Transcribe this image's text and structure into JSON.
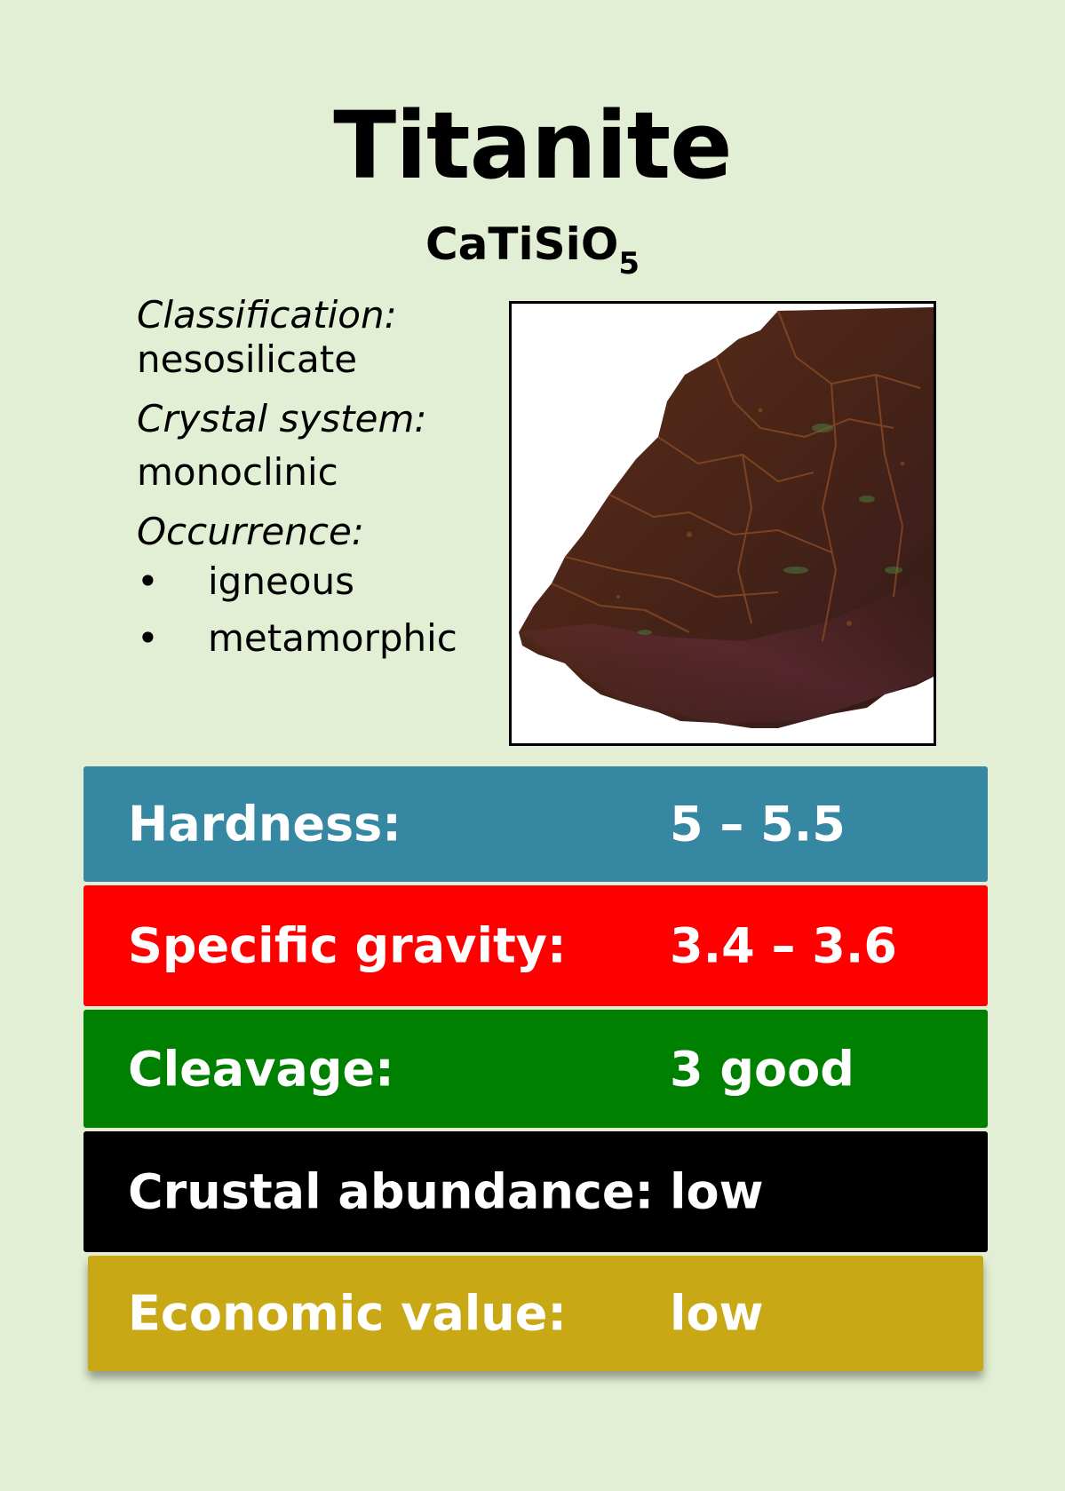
{
  "card": {
    "title": "Titanite",
    "formula_main": "CaTiSiO",
    "formula_sub": "5",
    "classification_label": "Classification:",
    "classification_value": "nesosilicate",
    "crystal_label": "Crystal system:",
    "crystal_value": "monoclinic",
    "occurrence_label": "Occurrence:",
    "occurrence_items": [
      "igneous",
      "metamorphic"
    ],
    "bullet": "•"
  },
  "properties": [
    {
      "label": "Hardness:",
      "value": "5 – 5.5",
      "color": "#3587a2"
    },
    {
      "label": "Specific gravity:",
      "value": "3.4 – 3.6",
      "color": "#ff0000"
    },
    {
      "label": "Cleavage:",
      "value": "3 good",
      "color": "#008000"
    },
    {
      "label": "Crustal abundance:",
      "value": "low",
      "color": "#000000"
    },
    {
      "label": "Economic value:",
      "value": "low",
      "color": "#c8a815"
    }
  ],
  "colors": {
    "background": "#e2efd4",
    "specimen_rock": "#4a2517"
  }
}
